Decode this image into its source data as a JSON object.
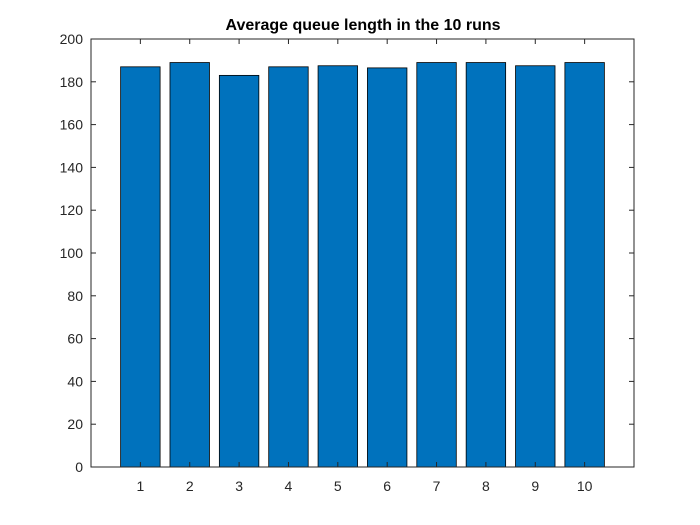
{
  "chart_data": {
    "type": "bar",
    "title": "Average queue length in the 10 runs",
    "xlabel": "",
    "ylabel": "",
    "categories": [
      "1",
      "2",
      "3",
      "4",
      "5",
      "6",
      "7",
      "8",
      "9",
      "10"
    ],
    "values": [
      187,
      189,
      183,
      187,
      187.5,
      186.5,
      189,
      189,
      187.5,
      189
    ],
    "ylim": [
      0,
      200
    ],
    "yticks": [
      0,
      20,
      40,
      60,
      80,
      100,
      120,
      140,
      160,
      180,
      200
    ],
    "grid": false,
    "legend": "none",
    "colors": {
      "bar": "#0072BD",
      "bar_edge": "#000000",
      "axis": "#262626",
      "background": "#ffffff"
    }
  }
}
